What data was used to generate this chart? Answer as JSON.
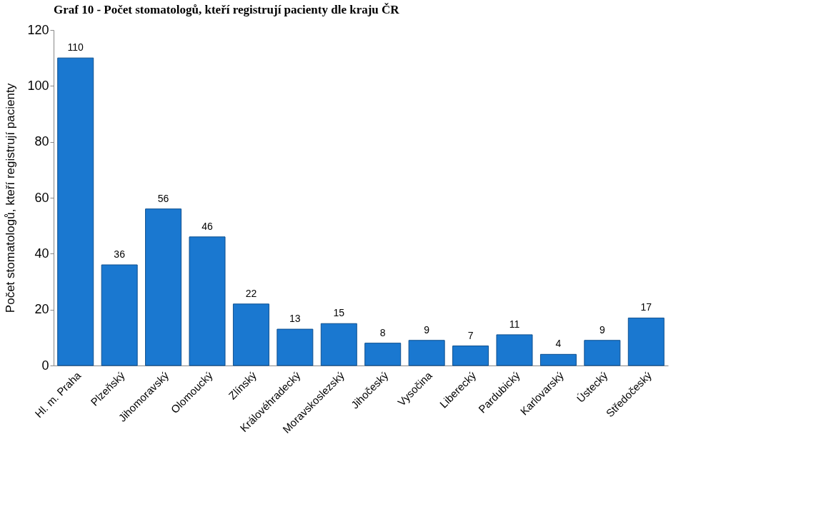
{
  "chart_data": {
    "type": "bar",
    "title": "Graf 10 - Počet stomatologů, kteří registrují pacienty dle kraju ČR",
    "ylabel": "Počet stomatologů, kteří registrují pacienty",
    "categories": [
      "Hl. m. Praha",
      "Plzeňský",
      "Jihomoravský",
      "Olomoucký",
      "Zlínský",
      "Královéhradecký",
      "Moravskoslezský",
      "Jihočeský",
      "Vysočina",
      "Liberecký",
      "Pardubický",
      "Karlovarský",
      "Ústecký",
      "Středočeský"
    ],
    "values": [
      110,
      36,
      56,
      46,
      22,
      13,
      15,
      8,
      9,
      7,
      11,
      4,
      9,
      17
    ],
    "color": "#1a78d0",
    "ylim": [
      0,
      120
    ],
    "yticks": [
      0,
      20,
      40,
      60,
      80,
      100,
      120
    ],
    "grid": false,
    "data_labels": true
  }
}
